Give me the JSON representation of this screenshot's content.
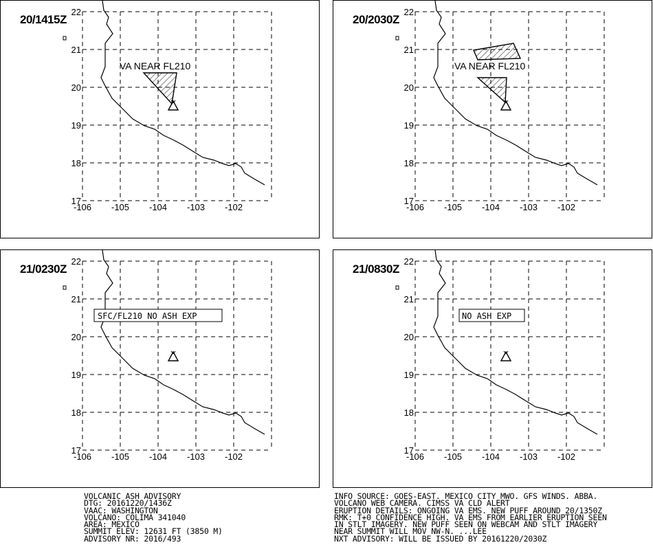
{
  "panels": [
    {
      "time": "20/1415Z",
      "label": "VA NEAR FL210",
      "label_box": false,
      "ash_polygons": 1
    },
    {
      "time": "20/2030Z",
      "label": "VA NEAR FL210",
      "label_box": false,
      "ash_polygons": 2
    },
    {
      "time": "21/0230Z",
      "label": "SFC/FL210 NO ASH EXP",
      "label_box": true,
      "ash_polygons": 0
    },
    {
      "time": "21/0830Z",
      "label": "NO ASH EXP",
      "label_box": true,
      "ash_polygons": 0
    }
  ],
  "axes": {
    "lat_ticks": [
      "22",
      "21",
      "20",
      "19",
      "18",
      "17"
    ],
    "lon_ticks": [
      "-106",
      "-105",
      "-104",
      "-103",
      "-102"
    ]
  },
  "advisory": {
    "left_lines": [
      "VOLCANIC ASH ADVISORY",
      "DTG: 20161220/1436Z",
      "VAAC: WASHINGTON",
      "VOLCANO: COLIMA 341040",
      "AREA: MEXICO",
      "SUMMIT ELEV: 12631 FT (3850 M)",
      "ADVISORY NR: 2016/493"
    ],
    "right_lines": [
      "INFO SOURCE: GOES-EAST. MEXICO CITY MWO. GFS WINDS. ABBA.",
      "VOLCANO WEB CAMERA. CIMSS VA CLD ALERT",
      "ERUPTION DETAILS: ONGOING VA EMS. NEW PUFF AROUND 20/1350Z",
      "RMK: T+0 CONFIDENCE HIGH. VA EMS FROM EARLIER ERUPTION SEEN",
      "IN STLT IMAGERY. NEW PUFF SEEN ON WEBCAM AND STLT IMAGERY",
      "NEAR SUMMIT WILL MOV NW-N. ...LEE",
      "NXT ADVISORY: WILL BE ISSUED BY 20161220/2030Z"
    ]
  }
}
